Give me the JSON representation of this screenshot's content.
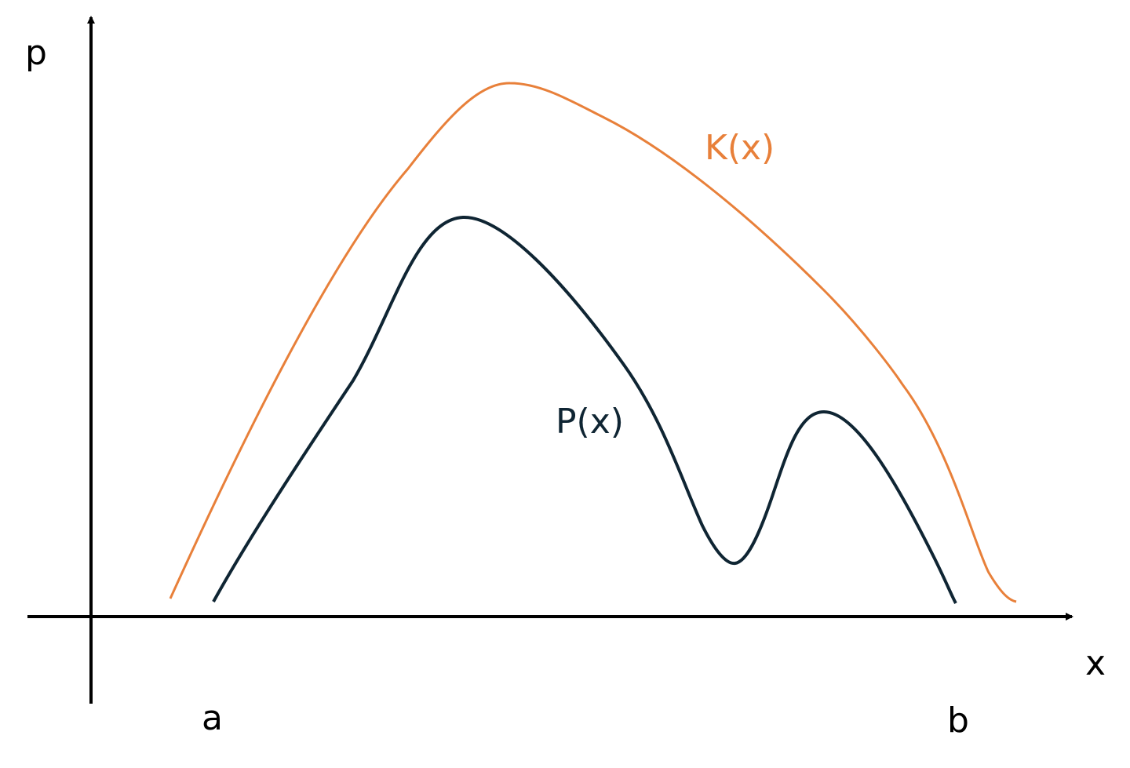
{
  "axes": {
    "x_label": "x",
    "y_label": "p",
    "tick_a": "a",
    "tick_b": "b"
  },
  "curves": {
    "k": {
      "label": "K(x)",
      "color": "#E8803A"
    },
    "p": {
      "label": "P(x)",
      "color": "#0F2533"
    }
  },
  "axis_color": "#000000"
}
